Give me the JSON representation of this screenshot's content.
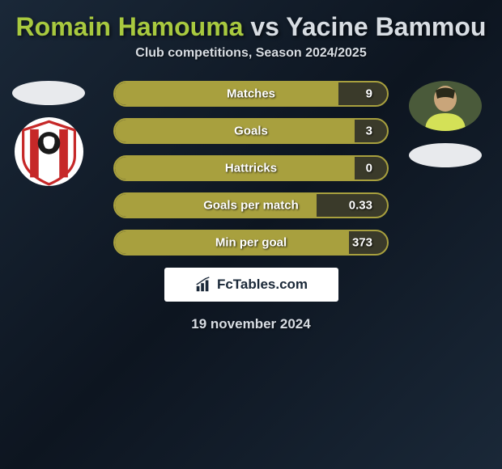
{
  "title": {
    "player1": "Romain Hamouma",
    "vs": "vs",
    "player2": "Yacine Bammou"
  },
  "subtitle": "Club competitions, Season 2024/2025",
  "stats": [
    {
      "label": "Matches",
      "value": "9",
      "fill_pct": 82
    },
    {
      "label": "Goals",
      "value": "3",
      "fill_pct": 88
    },
    {
      "label": "Hattricks",
      "value": "0",
      "fill_pct": 88
    },
    {
      "label": "Goals per match",
      "value": "0.33",
      "fill_pct": 74
    },
    {
      "label": "Min per goal",
      "value": "373",
      "fill_pct": 86
    }
  ],
  "brand": "FcTables.com",
  "date": "19 november 2024",
  "colors": {
    "bar_border": "#a8a03e",
    "bar_fill": "#a8a03e",
    "bar_bg": "#3a3a2a",
    "p1_color": "#a8c93f",
    "p2_color": "#d8dde3",
    "text_light": "#d8dde3",
    "bg_start": "#1a2838",
    "bg_end": "#0d1520",
    "ellipse": "#e8eaed",
    "brand_bg": "#ffffff"
  },
  "left_badge": {
    "bg": "#ffffff",
    "stripe": "#c62828",
    "dark": "#1a1a1a"
  },
  "right_photo": {
    "shirt": "#d4e157",
    "skin": "#c9a57a",
    "bg": "#4a5a3a"
  }
}
